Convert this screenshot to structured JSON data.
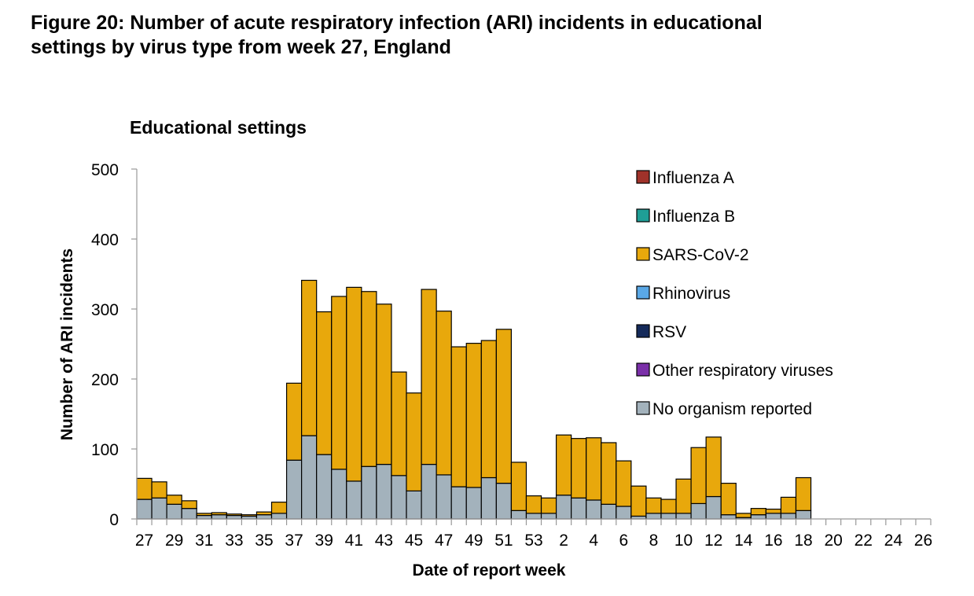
{
  "figure": {
    "title_line1": "Figure 20: Number of acute respiratory infection (ARI) incidents in educational",
    "title_line2": "settings by virus type from week 27, England"
  },
  "chart_data": {
    "type": "bar",
    "stacked": true,
    "title": "Educational settings",
    "xlabel": "Date of report week",
    "ylabel": "Number of ARI incidents",
    "ylim": [
      0,
      500
    ],
    "yticks": [
      0,
      100,
      200,
      300,
      400,
      500
    ],
    "grid": false,
    "legend_position": "top-right",
    "categories": [
      "27",
      "28",
      "29",
      "30",
      "31",
      "32",
      "33",
      "34",
      "35",
      "36",
      "37",
      "38",
      "39",
      "40",
      "41",
      "42",
      "43",
      "44",
      "45",
      "46",
      "47",
      "48",
      "49",
      "50",
      "51",
      "52",
      "53",
      "1",
      "2",
      "3",
      "4",
      "5",
      "6",
      "7",
      "8",
      "9",
      "10",
      "11",
      "12",
      "13",
      "14",
      "15",
      "16",
      "17",
      "18",
      "19",
      "20",
      "21",
      "22",
      "23",
      "24",
      "25",
      "26"
    ],
    "tick_labels": [
      "27",
      "",
      "29",
      "",
      "31",
      "",
      "33",
      "",
      "35",
      "",
      "37",
      "",
      "39",
      "",
      "41",
      "",
      "43",
      "",
      "45",
      "",
      "47",
      "",
      "49",
      "",
      "51",
      "",
      "53",
      "",
      "2",
      "",
      "4",
      "",
      "6",
      "",
      "8",
      "",
      "10",
      "",
      "12",
      "",
      "14",
      "",
      "16",
      "",
      "18",
      "",
      "20",
      "",
      "22",
      "",
      "24",
      "",
      "26"
    ],
    "series": [
      {
        "name": "Influenza A",
        "color": "#a0322a",
        "values": [
          0,
          0,
          0,
          0,
          0,
          0,
          0,
          0,
          0,
          0,
          0,
          0,
          0,
          0,
          0,
          0,
          0,
          0,
          0,
          0,
          0,
          0,
          0,
          0,
          0,
          0,
          0,
          0,
          0,
          0,
          0,
          0,
          0,
          0,
          0,
          0,
          0,
          0,
          0,
          0,
          0,
          0,
          0,
          0,
          0,
          null,
          null,
          null,
          null,
          null,
          null,
          null,
          null
        ]
      },
      {
        "name": "Influenza B",
        "color": "#1f9e96",
        "values": [
          0,
          0,
          0,
          0,
          0,
          0,
          0,
          0,
          0,
          0,
          0,
          0,
          0,
          0,
          0,
          0,
          0,
          0,
          0,
          0,
          0,
          0,
          0,
          0,
          0,
          0,
          0,
          0,
          0,
          0,
          0,
          0,
          0,
          0,
          0,
          0,
          0,
          0,
          0,
          0,
          0,
          0,
          0,
          0,
          0,
          null,
          null,
          null,
          null,
          null,
          null,
          null,
          null
        ]
      },
      {
        "name": "SARS-CoV-2",
        "color": "#e8a80c",
        "values": [
          30,
          23,
          13,
          11,
          3,
          3,
          2,
          2,
          4,
          16,
          110,
          222,
          204,
          247,
          277,
          250,
          229,
          148,
          140,
          250,
          234,
          200,
          206,
          196,
          220,
          69,
          25,
          22,
          86,
          85,
          89,
          88,
          65,
          43,
          22,
          20,
          49,
          80,
          85,
          45,
          6,
          9,
          6,
          23,
          47,
          null,
          null,
          null,
          null,
          null,
          null,
          null,
          null
        ]
      },
      {
        "name": "Rhinovirus",
        "color": "#5aa8e6",
        "values": [
          0,
          0,
          0,
          0,
          0,
          0,
          0,
          0,
          0,
          0,
          0,
          0,
          0,
          0,
          0,
          0,
          0,
          0,
          0,
          0,
          0,
          0,
          0,
          0,
          0,
          0,
          0,
          0,
          0,
          0,
          0,
          0,
          0,
          0,
          0,
          0,
          0,
          0,
          0,
          0,
          0,
          0,
          0,
          0,
          0,
          null,
          null,
          null,
          null,
          null,
          null,
          null,
          null
        ]
      },
      {
        "name": "RSV",
        "color": "#152a5a",
        "values": [
          0,
          0,
          0,
          0,
          0,
          0,
          0,
          0,
          0,
          0,
          0,
          0,
          0,
          0,
          0,
          0,
          0,
          0,
          0,
          0,
          0,
          0,
          0,
          0,
          0,
          0,
          0,
          0,
          0,
          0,
          0,
          0,
          0,
          0,
          0,
          0,
          0,
          0,
          0,
          0,
          0,
          0,
          0,
          0,
          0,
          null,
          null,
          null,
          null,
          null,
          null,
          null,
          null
        ]
      },
      {
        "name": "Other respiratory viruses",
        "color": "#7a2fa8",
        "values": [
          0,
          0,
          0,
          0,
          0,
          0,
          0,
          0,
          0,
          0,
          0,
          0,
          0,
          0,
          0,
          0,
          0,
          0,
          0,
          0,
          0,
          0,
          0,
          0,
          0,
          0,
          0,
          0,
          0,
          0,
          0,
          0,
          0,
          0,
          0,
          0,
          0,
          0,
          0,
          0,
          0,
          0,
          0,
          0,
          0,
          null,
          null,
          null,
          null,
          null,
          null,
          null,
          null
        ]
      },
      {
        "name": "No organism reported",
        "color": "#a3b2bc",
        "values": [
          28,
          30,
          21,
          15,
          5,
          6,
          5,
          4,
          6,
          8,
          84,
          119,
          92,
          71,
          54,
          75,
          78,
          62,
          40,
          78,
          63,
          46,
          45,
          59,
          51,
          12,
          8,
          8,
          34,
          30,
          27,
          21,
          18,
          4,
          8,
          8,
          8,
          22,
          32,
          6,
          2,
          6,
          8,
          8,
          12,
          null,
          null,
          null,
          null,
          null,
          null,
          null,
          null
        ]
      }
    ]
  }
}
